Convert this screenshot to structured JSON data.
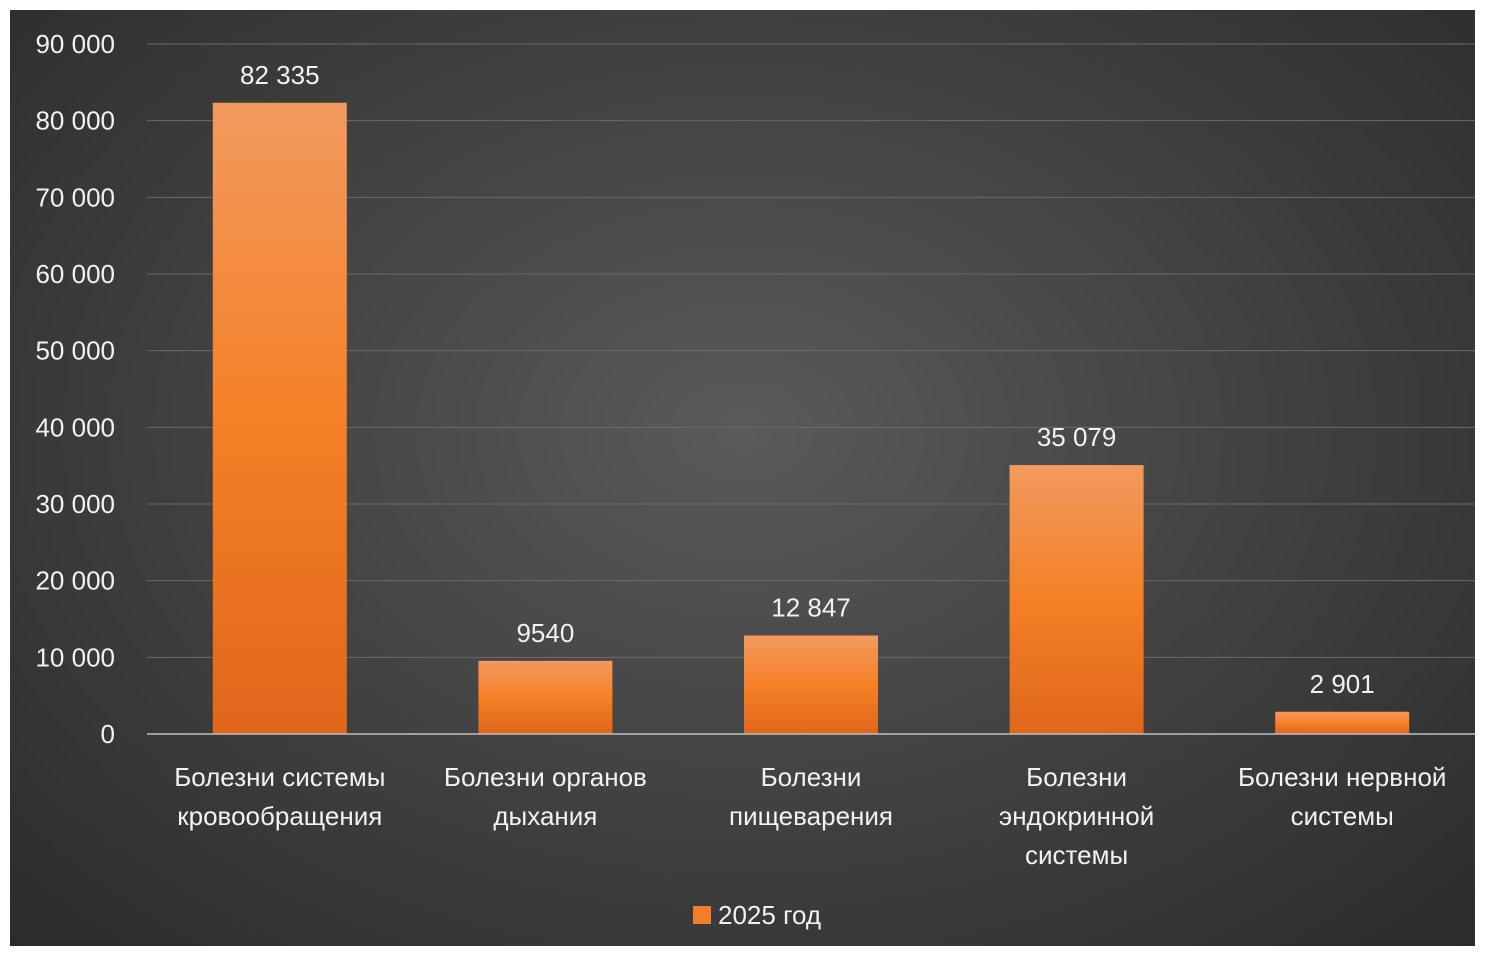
{
  "chart_data": {
    "type": "bar",
    "categories": [
      [
        "Болезни системы",
        "кровообращения"
      ],
      [
        "Болезни органов",
        "дыхания"
      ],
      [
        "Болезни",
        "пищеварения"
      ],
      [
        "Болезни",
        "эндокринной",
        "системы"
      ],
      [
        "Болезни нервной",
        "системы"
      ]
    ],
    "series": [
      {
        "name": "2025 год",
        "values": [
          82335,
          9540,
          12847,
          35079,
          2901
        ],
        "labels": [
          "82 335",
          "9540",
          "12 847",
          "35 079",
          "2 901"
        ],
        "color": "#f07e2a"
      }
    ],
    "yticks": [
      {
        "value": 0,
        "label": "0"
      },
      {
        "value": 10000,
        "label": "10 000"
      },
      {
        "value": 20000,
        "label": "20 000"
      },
      {
        "value": 30000,
        "label": "30 000"
      },
      {
        "value": 40000,
        "label": "40 000"
      },
      {
        "value": 50000,
        "label": "50 000"
      },
      {
        "value": 60000,
        "label": "60 000"
      },
      {
        "value": 70000,
        "label": "70 000"
      },
      {
        "value": 80000,
        "label": "80 000"
      },
      {
        "value": 90000,
        "label": "90 000"
      }
    ],
    "ylim": [
      0,
      90000
    ],
    "grid": true,
    "legend_position": "bottom",
    "colors": {
      "bar_top": "#f29a5e",
      "bar_mid": "#f58026",
      "bar_bottom": "#e0661a",
      "gridline": "#6a6a6a",
      "axis": "#bfbfbf",
      "text": "#f2f2f2"
    }
  }
}
